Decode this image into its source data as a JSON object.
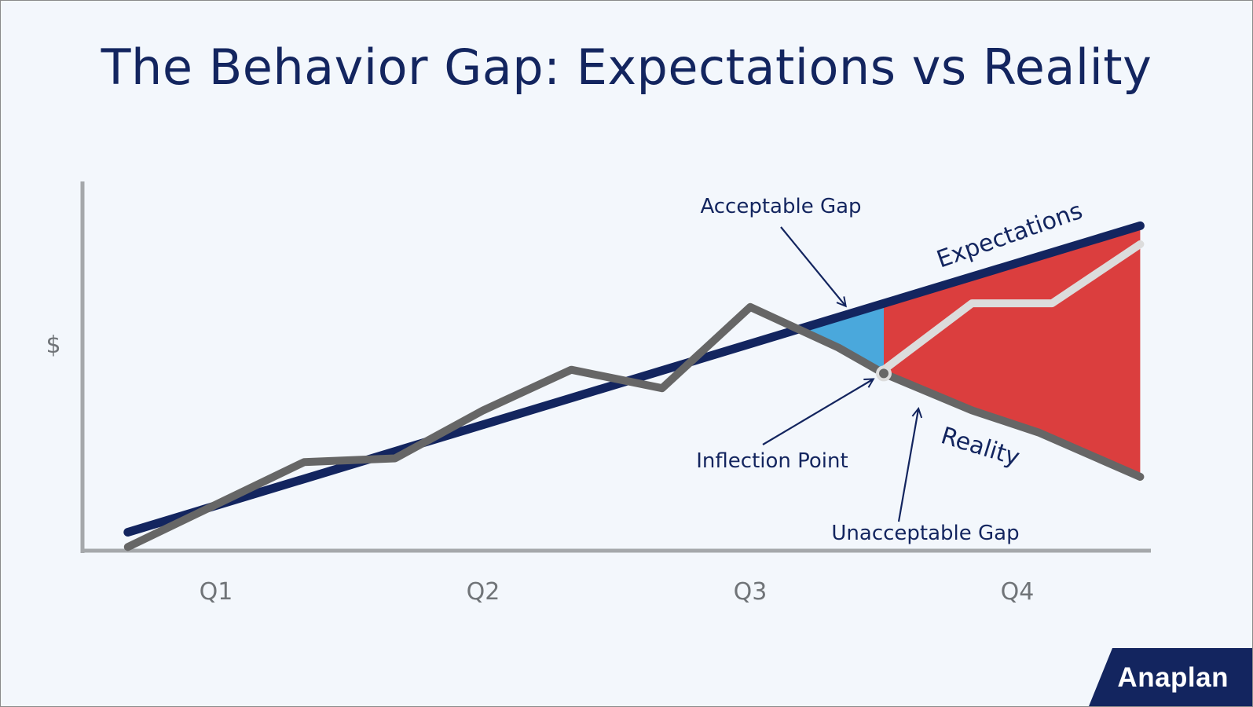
{
  "title": "The Behavior Gap: Expectations vs Reality",
  "brand": {
    "logo_text": "Anaplan",
    "logo_color": "#13255f"
  },
  "colors": {
    "expectations": "#13255f",
    "reality": "#666666",
    "alternate_path": "#dcdcdc",
    "acceptable_gap": "#4aa8dc",
    "unacceptable_gap": "#db3e3e",
    "axis": "#a5a8ab",
    "background": "#f3f7fc"
  },
  "chart_data": {
    "type": "line",
    "title": "The Behavior Gap: Expectations vs Reality",
    "xlabel": "",
    "ylabel": "$",
    "categories": [
      "Q1",
      "Q2",
      "Q3",
      "Q4"
    ],
    "xlim": [
      0,
      4
    ],
    "ylim": [
      0,
      100
    ],
    "grid": false,
    "series": [
      {
        "name": "Expectations",
        "points": [
          [
            0.17,
            5
          ],
          [
            3.96,
            88
          ]
        ]
      },
      {
        "name": "Reality",
        "points": [
          [
            0.17,
            1
          ],
          [
            0.83,
            24
          ],
          [
            1.17,
            25
          ],
          [
            1.5,
            38
          ],
          [
            1.83,
            49
          ],
          [
            2.17,
            44
          ],
          [
            2.5,
            66
          ],
          [
            2.83,
            55
          ],
          [
            3.0,
            48
          ],
          [
            3.33,
            38
          ],
          [
            3.58,
            32
          ],
          [
            3.96,
            20
          ]
        ]
      },
      {
        "name": "",
        "points": [
          [
            3.0,
            49
          ],
          [
            3.33,
            67
          ],
          [
            3.63,
            67
          ],
          [
            3.96,
            83
          ]
        ]
      }
    ],
    "regions": [
      {
        "label": "Acceptable Gap",
        "x_range": [
          2.67,
          3.0
        ]
      },
      {
        "label": "Unacceptable Gap",
        "x_range": [
          3.0,
          3.96
        ]
      }
    ],
    "annotations": [
      {
        "text": "Acceptable Gap",
        "x": 2.9,
        "y": 57
      },
      {
        "text": "Inflection Point",
        "x": 3.0,
        "y": 48
      },
      {
        "text": "Unacceptable Gap",
        "x": 3.15,
        "y": 35
      }
    ]
  }
}
